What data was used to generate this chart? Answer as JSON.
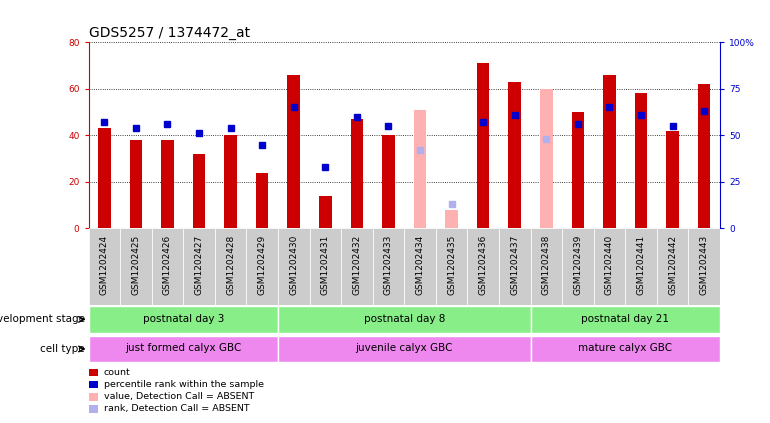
{
  "title": "GDS5257 / 1374472_at",
  "samples": [
    "GSM1202424",
    "GSM1202425",
    "GSM1202426",
    "GSM1202427",
    "GSM1202428",
    "GSM1202429",
    "GSM1202430",
    "GSM1202431",
    "GSM1202432",
    "GSM1202433",
    "GSM1202434",
    "GSM1202435",
    "GSM1202436",
    "GSM1202437",
    "GSM1202438",
    "GSM1202439",
    "GSM1202440",
    "GSM1202441",
    "GSM1202442",
    "GSM1202443"
  ],
  "count_values": [
    43,
    38,
    38,
    32,
    40,
    24,
    66,
    14,
    47,
    40,
    null,
    null,
    71,
    63,
    null,
    50,
    66,
    58,
    42,
    62
  ],
  "rank_values": [
    57,
    54,
    56,
    51,
    54,
    45,
    65,
    33,
    60,
    55,
    null,
    null,
    57,
    61,
    null,
    56,
    65,
    61,
    55,
    63
  ],
  "absent_count_values": [
    null,
    null,
    null,
    null,
    null,
    null,
    null,
    null,
    null,
    null,
    51,
    8,
    null,
    null,
    60,
    null,
    null,
    null,
    null,
    null
  ],
  "absent_rank_values": [
    null,
    null,
    null,
    null,
    null,
    null,
    null,
    null,
    null,
    null,
    42,
    13,
    null,
    null,
    48,
    null,
    null,
    null,
    null,
    null
  ],
  "groups": [
    [
      0,
      5,
      "postnatal day 3"
    ],
    [
      6,
      13,
      "postnatal day 8"
    ],
    [
      14,
      19,
      "postnatal day 21"
    ]
  ],
  "cell_types": [
    [
      0,
      5,
      "just formed calyx GBC"
    ],
    [
      6,
      13,
      "juvenile calyx GBC"
    ],
    [
      14,
      19,
      "mature calyx GBC"
    ]
  ],
  "ylim_left": [
    0,
    80
  ],
  "ylim_right": [
    0,
    100
  ],
  "yticks_left": [
    0,
    20,
    40,
    60,
    80
  ],
  "yticks_right": [
    0,
    25,
    50,
    75,
    100
  ],
  "bar_color": "#cc0000",
  "rank_color": "#0000cc",
  "absent_bar_color": "#ffb0b0",
  "absent_rank_color": "#b0b0ee",
  "group_color": "#88ee88",
  "cell_color": "#ee88ee",
  "tick_bg_color": "#cccccc",
  "title_fontsize": 10,
  "tick_fontsize": 6.5,
  "label_fontsize": 8,
  "bar_width": 0.4,
  "rank_square_size": 4
}
